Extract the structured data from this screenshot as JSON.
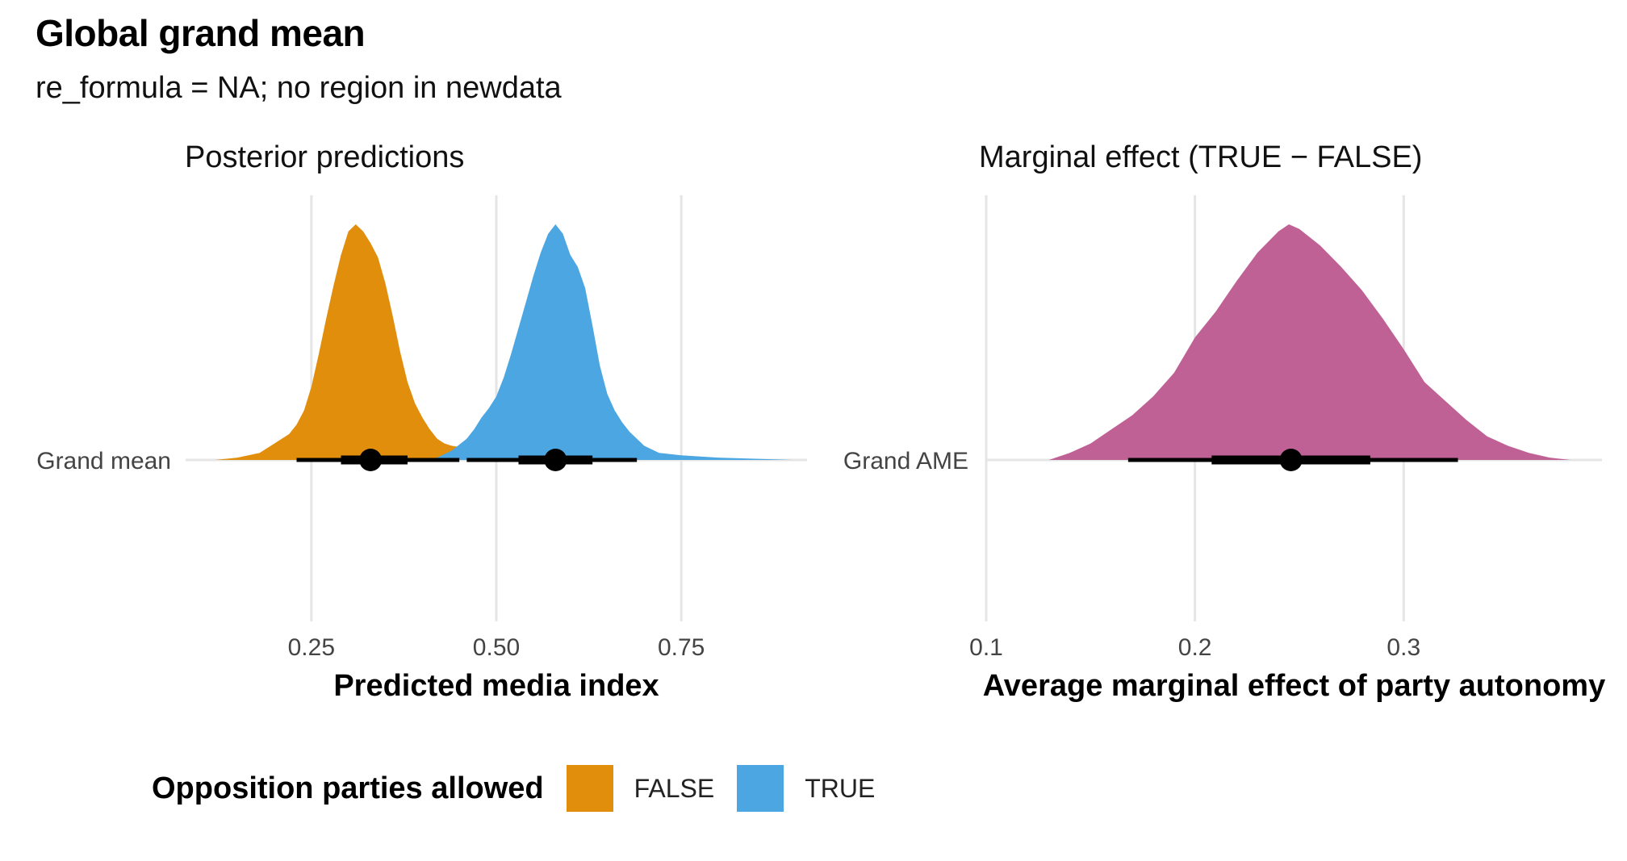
{
  "title": "Global grand mean",
  "subtitle": "re_formula = NA; no region in newdata",
  "colors": {
    "false_fill": "#E08E0B",
    "true_fill": "#4BA6E2",
    "ame_fill": "#C06196",
    "interval": "#000000",
    "grid": "#E5E5E5"
  },
  "legend": {
    "title": "Opposition parties allowed",
    "items": [
      {
        "label": "FALSE",
        "color": "#E08E0B"
      },
      {
        "label": "TRUE",
        "color": "#4BA6E2"
      }
    ]
  },
  "chart_data": [
    {
      "type": "area",
      "title": "Posterior predictions",
      "xlabel": "Predicted media index",
      "ylabel": "",
      "y_categories": [
        "Grand mean"
      ],
      "xlim": [
        0.08,
        0.92
      ],
      "xticks": [
        0.25,
        0.5,
        0.75
      ],
      "xtick_labels": [
        "0.25",
        "0.50",
        "0.75"
      ],
      "grid": true,
      "series": [
        {
          "name": "FALSE",
          "color": "#E08E0B",
          "density_x": [
            0.12,
            0.15,
            0.18,
            0.2,
            0.22,
            0.23,
            0.24,
            0.25,
            0.26,
            0.27,
            0.28,
            0.29,
            0.3,
            0.31,
            0.32,
            0.33,
            0.34,
            0.35,
            0.36,
            0.37,
            0.38,
            0.39,
            0.4,
            0.41,
            0.42,
            0.43,
            0.44,
            0.46,
            0.48,
            0.5,
            0.52,
            0.55,
            0.58
          ],
          "density_y": [
            0.0,
            0.01,
            0.03,
            0.07,
            0.11,
            0.15,
            0.21,
            0.31,
            0.45,
            0.6,
            0.74,
            0.87,
            0.97,
            1.0,
            0.97,
            0.92,
            0.86,
            0.75,
            0.61,
            0.46,
            0.33,
            0.24,
            0.18,
            0.13,
            0.09,
            0.07,
            0.06,
            0.05,
            0.04,
            0.03,
            0.02,
            0.01,
            0.0
          ],
          "median": 0.33,
          "interval_66": [
            0.29,
            0.38
          ],
          "interval_95": [
            0.23,
            0.45
          ]
        },
        {
          "name": "TRUE",
          "color": "#4BA6E2",
          "density_x": [
            0.4,
            0.42,
            0.44,
            0.46,
            0.47,
            0.48,
            0.49,
            0.5,
            0.51,
            0.52,
            0.53,
            0.54,
            0.55,
            0.56,
            0.57,
            0.58,
            0.59,
            0.6,
            0.61,
            0.62,
            0.63,
            0.64,
            0.65,
            0.66,
            0.67,
            0.68,
            0.69,
            0.7,
            0.72,
            0.75,
            0.8,
            0.85,
            0.9
          ],
          "density_y": [
            0.0,
            0.01,
            0.04,
            0.09,
            0.13,
            0.18,
            0.22,
            0.27,
            0.35,
            0.45,
            0.56,
            0.67,
            0.78,
            0.88,
            0.96,
            1.0,
            0.96,
            0.87,
            0.82,
            0.73,
            0.57,
            0.4,
            0.28,
            0.21,
            0.16,
            0.12,
            0.09,
            0.06,
            0.03,
            0.02,
            0.01,
            0.005,
            0.0
          ],
          "median": 0.58,
          "interval_66": [
            0.53,
            0.63
          ],
          "interval_95": [
            0.46,
            0.69
          ]
        }
      ]
    },
    {
      "type": "area",
      "title": "Marginal effect (TRUE − FALSE)",
      "xlabel": "Average marginal effect of party autonomy",
      "ylabel": "",
      "y_categories": [
        "Grand AME"
      ],
      "xlim": [
        0.1,
        0.395
      ],
      "xticks": [
        0.1,
        0.2,
        0.3
      ],
      "xtick_labels": [
        "0.1",
        "0.2",
        "0.3"
      ],
      "grid": true,
      "series": [
        {
          "name": "AME",
          "color": "#C06196",
          "density_x": [
            0.11,
            0.13,
            0.14,
            0.15,
            0.16,
            0.17,
            0.18,
            0.19,
            0.2,
            0.21,
            0.22,
            0.23,
            0.24,
            0.245,
            0.25,
            0.26,
            0.27,
            0.28,
            0.29,
            0.3,
            0.31,
            0.32,
            0.33,
            0.34,
            0.35,
            0.36,
            0.37,
            0.38
          ],
          "density_y": [
            0.0,
            0.0,
            0.03,
            0.07,
            0.13,
            0.19,
            0.27,
            0.37,
            0.52,
            0.63,
            0.76,
            0.88,
            0.97,
            1.0,
            0.98,
            0.91,
            0.82,
            0.72,
            0.6,
            0.47,
            0.33,
            0.25,
            0.17,
            0.1,
            0.06,
            0.03,
            0.01,
            0.0
          ],
          "median": 0.246,
          "interval_66": [
            0.208,
            0.284
          ],
          "interval_95": [
            0.168,
            0.326
          ]
        }
      ]
    }
  ]
}
